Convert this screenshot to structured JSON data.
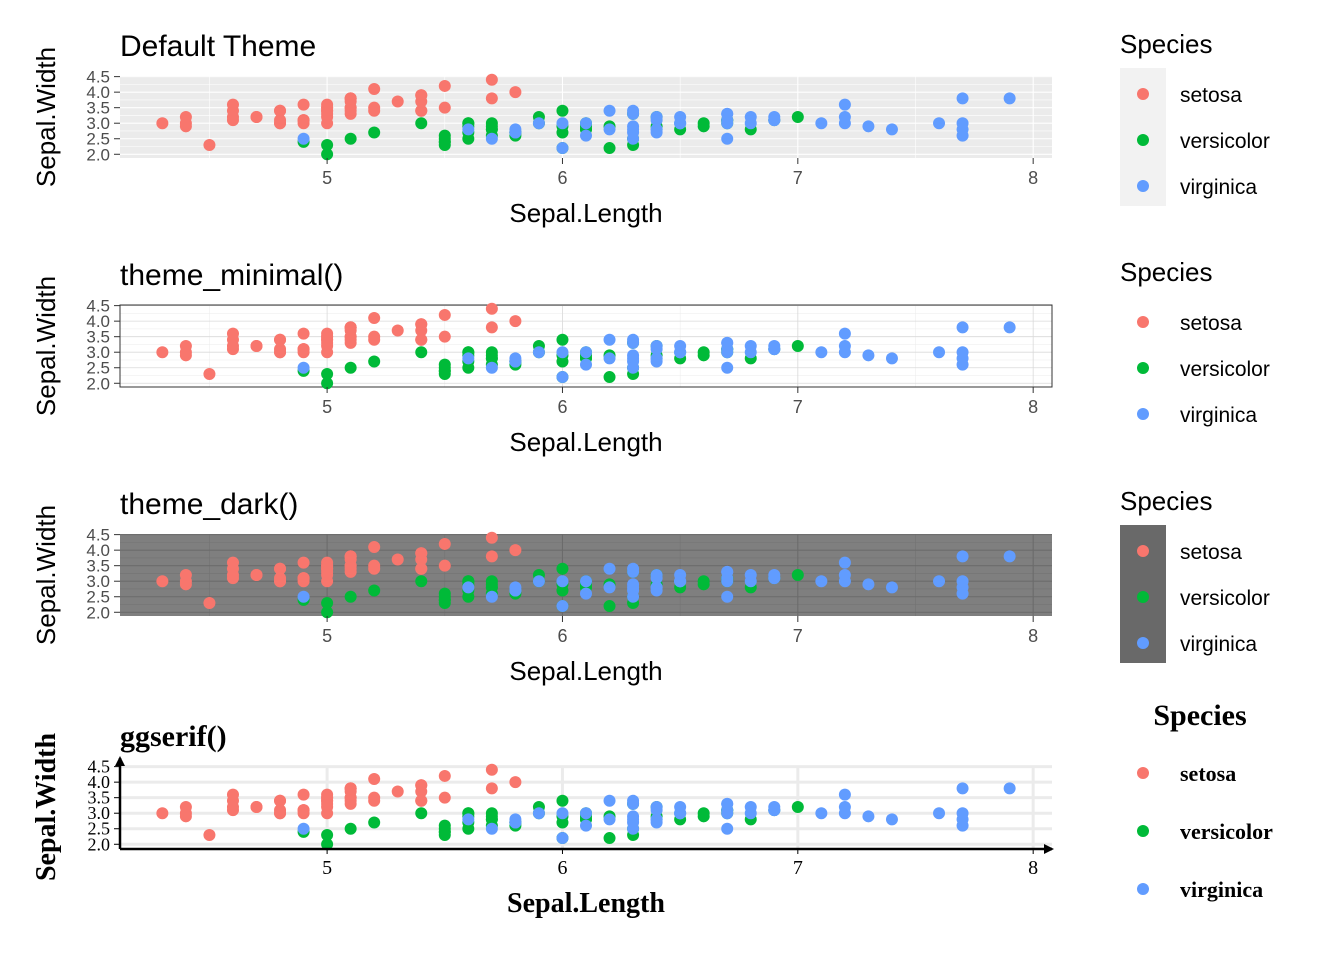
{
  "chart_data": [
    {
      "type": "scatter",
      "title": "Default Theme",
      "theme": "default",
      "xlabel": "Sepal.Length",
      "ylabel": "Sepal.Width",
      "x_ticks": [
        "5",
        "6",
        "7",
        "8"
      ],
      "y_ticks": [
        "2.0",
        "2.5",
        "3.0",
        "3.5",
        "4.0",
        "4.5"
      ],
      "xlim": [
        4.12,
        8.08
      ],
      "ylim": [
        1.88,
        4.52
      ],
      "legend_title": "Species",
      "legend_position": "right"
    },
    {
      "type": "scatter",
      "title": "theme_minimal()",
      "theme": "minimal",
      "xlabel": "Sepal.Length",
      "ylabel": "Sepal.Width",
      "x_ticks": [
        "5",
        "6",
        "7",
        "8"
      ],
      "y_ticks": [
        "2.0",
        "2.5",
        "3.0",
        "3.5",
        "4.0",
        "4.5"
      ],
      "xlim": [
        4.12,
        8.08
      ],
      "ylim": [
        1.88,
        4.52
      ],
      "legend_title": "Species",
      "legend_position": "right"
    },
    {
      "type": "scatter",
      "title": "theme_dark()",
      "theme": "dark",
      "xlabel": "Sepal.Length",
      "ylabel": "Sepal.Width",
      "x_ticks": [
        "5",
        "6",
        "7",
        "8"
      ],
      "y_ticks": [
        "2.0",
        "2.5",
        "3.0",
        "3.5",
        "4.0",
        "4.5"
      ],
      "xlim": [
        4.12,
        8.08
      ],
      "ylim": [
        1.88,
        4.52
      ],
      "legend_title": "Species",
      "legend_position": "right"
    },
    {
      "type": "scatter",
      "title": "ggserif()",
      "theme": "serif",
      "xlabel": "Sepal.Length",
      "ylabel": "Sepal.Width",
      "x_ticks": [
        "5",
        "6",
        "7",
        "8"
      ],
      "y_ticks": [
        "2.0",
        "2.5",
        "3.0",
        "3.5",
        "4.0",
        "4.5"
      ],
      "xlim": [
        4.12,
        8.08
      ],
      "ylim": [
        1.88,
        4.52
      ],
      "legend_title": "Species",
      "legend_position": "right"
    }
  ],
  "series": [
    {
      "name": "setosa",
      "color": "#F8766D",
      "points": [
        [
          5.1,
          3.5
        ],
        [
          4.9,
          3.0
        ],
        [
          4.7,
          3.2
        ],
        [
          4.6,
          3.1
        ],
        [
          5.0,
          3.6
        ],
        [
          5.4,
          3.9
        ],
        [
          4.6,
          3.4
        ],
        [
          5.0,
          3.4
        ],
        [
          4.4,
          2.9
        ],
        [
          4.9,
          3.1
        ],
        [
          5.4,
          3.7
        ],
        [
          4.8,
          3.4
        ],
        [
          4.8,
          3.0
        ],
        [
          4.3,
          3.0
        ],
        [
          5.8,
          4.0
        ],
        [
          5.7,
          4.4
        ],
        [
          5.4,
          3.9
        ],
        [
          5.1,
          3.5
        ],
        [
          5.7,
          3.8
        ],
        [
          5.1,
          3.8
        ],
        [
          5.4,
          3.4
        ],
        [
          5.1,
          3.7
        ],
        [
          4.6,
          3.6
        ],
        [
          5.1,
          3.3
        ],
        [
          4.8,
          3.4
        ],
        [
          5.0,
          3.0
        ],
        [
          5.0,
          3.4
        ],
        [
          5.2,
          3.5
        ],
        [
          5.2,
          3.4
        ],
        [
          4.7,
          3.2
        ],
        [
          4.8,
          3.1
        ],
        [
          5.4,
          3.4
        ],
        [
          5.2,
          4.1
        ],
        [
          5.5,
          4.2
        ],
        [
          4.9,
          3.1
        ],
        [
          5.0,
          3.2
        ],
        [
          5.5,
          3.5
        ],
        [
          4.9,
          3.6
        ],
        [
          4.4,
          3.0
        ],
        [
          5.1,
          3.4
        ],
        [
          5.0,
          3.5
        ],
        [
          4.5,
          2.3
        ],
        [
          4.4,
          3.2
        ],
        [
          5.0,
          3.5
        ],
        [
          5.1,
          3.8
        ],
        [
          4.8,
          3.0
        ],
        [
          5.1,
          3.8
        ],
        [
          4.6,
          3.2
        ],
        [
          5.3,
          3.7
        ],
        [
          5.0,
          3.3
        ]
      ]
    },
    {
      "name": "versicolor",
      "color": "#00BA38",
      "points": [
        [
          7.0,
          3.2
        ],
        [
          6.4,
          3.2
        ],
        [
          6.9,
          3.1
        ],
        [
          5.5,
          2.3
        ],
        [
          6.5,
          2.8
        ],
        [
          5.7,
          2.8
        ],
        [
          6.3,
          3.3
        ],
        [
          4.9,
          2.4
        ],
        [
          6.6,
          2.9
        ],
        [
          5.2,
          2.7
        ],
        [
          5.0,
          2.0
        ],
        [
          5.9,
          3.0
        ],
        [
          6.0,
          2.2
        ],
        [
          6.1,
          2.9
        ],
        [
          5.6,
          2.9
        ],
        [
          6.7,
          3.1
        ],
        [
          5.6,
          3.0
        ],
        [
          5.8,
          2.7
        ],
        [
          6.2,
          2.2
        ],
        [
          5.6,
          2.5
        ],
        [
          5.9,
          3.2
        ],
        [
          6.1,
          2.8
        ],
        [
          6.3,
          2.5
        ],
        [
          6.1,
          2.8
        ],
        [
          6.4,
          2.9
        ],
        [
          6.6,
          3.0
        ],
        [
          6.8,
          2.8
        ],
        [
          6.7,
          3.0
        ],
        [
          6.0,
          2.9
        ],
        [
          5.7,
          2.6
        ],
        [
          5.5,
          2.4
        ],
        [
          5.5,
          2.4
        ],
        [
          5.8,
          2.7
        ],
        [
          6.0,
          2.7
        ],
        [
          5.4,
          3.0
        ],
        [
          6.0,
          3.4
        ],
        [
          6.7,
          3.1
        ],
        [
          6.3,
          2.3
        ],
        [
          5.6,
          3.0
        ],
        [
          5.5,
          2.5
        ],
        [
          5.5,
          2.6
        ],
        [
          6.1,
          3.0
        ],
        [
          5.8,
          2.6
        ],
        [
          5.0,
          2.3
        ],
        [
          5.6,
          2.7
        ],
        [
          5.7,
          3.0
        ],
        [
          5.7,
          2.9
        ],
        [
          6.2,
          2.9
        ],
        [
          5.1,
          2.5
        ],
        [
          5.7,
          2.8
        ]
      ]
    },
    {
      "name": "virginica",
      "color": "#619CFF",
      "points": [
        [
          6.3,
          3.3
        ],
        [
          5.8,
          2.7
        ],
        [
          7.1,
          3.0
        ],
        [
          6.3,
          2.9
        ],
        [
          6.5,
          3.0
        ],
        [
          7.6,
          3.0
        ],
        [
          4.9,
          2.5
        ],
        [
          7.3,
          2.9
        ],
        [
          6.7,
          2.5
        ],
        [
          7.2,
          3.6
        ],
        [
          6.5,
          3.2
        ],
        [
          6.4,
          2.7
        ],
        [
          6.8,
          3.0
        ],
        [
          5.7,
          2.5
        ],
        [
          5.8,
          2.8
        ],
        [
          6.4,
          3.2
        ],
        [
          6.5,
          3.0
        ],
        [
          7.7,
          3.8
        ],
        [
          7.7,
          2.6
        ],
        [
          6.0,
          2.2
        ],
        [
          6.9,
          3.2
        ],
        [
          5.6,
          2.8
        ],
        [
          7.7,
          2.8
        ],
        [
          6.3,
          2.7
        ],
        [
          6.7,
          3.3
        ],
        [
          7.2,
          3.2
        ],
        [
          6.2,
          2.8
        ],
        [
          6.1,
          3.0
        ],
        [
          6.4,
          2.8
        ],
        [
          7.2,
          3.0
        ],
        [
          7.4,
          2.8
        ],
        [
          7.9,
          3.8
        ],
        [
          6.4,
          2.8
        ],
        [
          6.3,
          2.8
        ],
        [
          6.1,
          2.6
        ],
        [
          7.7,
          3.0
        ],
        [
          6.3,
          3.4
        ],
        [
          6.4,
          3.1
        ],
        [
          6.0,
          3.0
        ],
        [
          6.9,
          3.1
        ],
        [
          6.7,
          3.1
        ],
        [
          6.9,
          3.1
        ],
        [
          5.8,
          2.7
        ],
        [
          6.8,
          3.2
        ],
        [
          6.7,
          3.3
        ],
        [
          6.7,
          3.0
        ],
        [
          6.3,
          2.5
        ],
        [
          6.5,
          3.0
        ],
        [
          6.2,
          3.4
        ],
        [
          5.9,
          3.0
        ]
      ]
    }
  ]
}
